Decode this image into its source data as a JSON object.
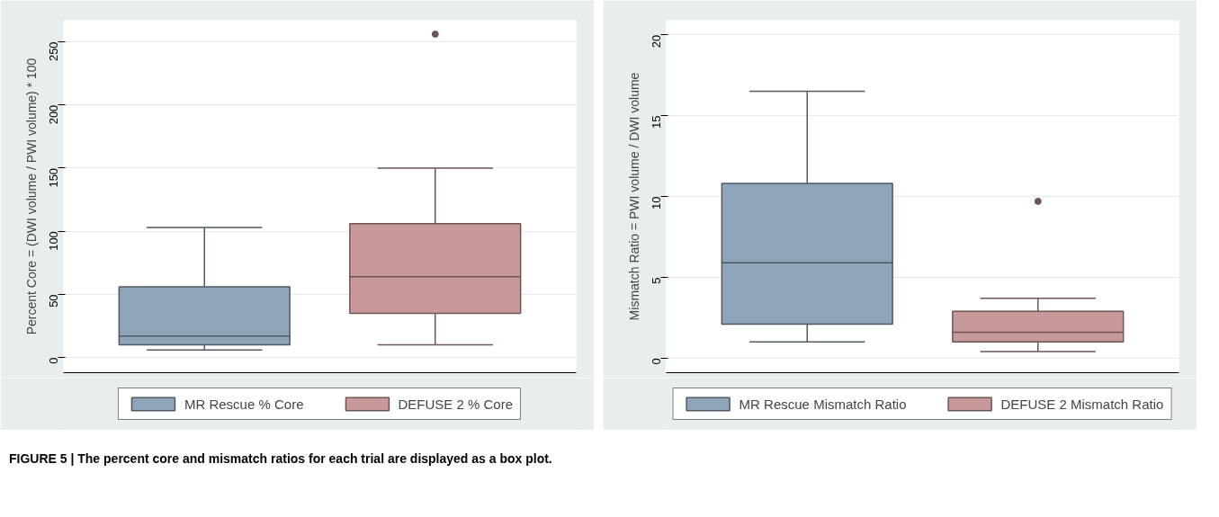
{
  "chart_data": [
    {
      "type": "box",
      "ylabel": "Percent Core = (DWI volume / PWI volume) * 100",
      "categories": [
        null
      ],
      "ylim": [
        -12,
        267
      ],
      "yticks": [
        0,
        50,
        100,
        150,
        200,
        250
      ],
      "grid": "y",
      "legend": "bottom",
      "tick_labels": "y",
      "annotations": [
        "FIGURE 5 | The percent core and mismatch ratios for each trial are displayed as a box plot."
      ],
      "series": [
        {
          "name": "MR Rescue % Core",
          "color": "#8ea5b9",
          "boxes": [
            {
              "low": 6,
              "q1": 10,
              "median": 17,
              "q3": 56,
              "high": 103
            }
          ]
        },
        {
          "name": "DEFUSE 2 % Core",
          "color": "#c8999b",
          "boxes": [
            {
              "low": 10,
              "q1": 35,
              "median": 64,
              "q3": 106,
              "high": 150,
              "outliers": [
                256
              ]
            }
          ]
        }
      ]
    },
    {
      "type": "box",
      "ylabel": "Mismatch Ratio = PWI volume / DWI volume",
      "categories": [
        null
      ],
      "ylim": [
        -0.9,
        20.9
      ],
      "yticks": [
        0,
        5,
        10,
        15,
        20
      ],
      "grid": "y",
      "legend": "bottom",
      "tick_labels": "y",
      "series": [
        {
          "name": "MR Rescue Mismatch Ratio",
          "color": "#8ea5b9",
          "boxes": [
            {
              "low": 1.0,
              "q1": 2.1,
              "median": 5.9,
              "q3": 10.8,
              "high": 16.5
            }
          ]
        },
        {
          "name": "DEFUSE 2 Mismatch Ratio",
          "color": "#c8999b",
          "boxes": [
            {
              "low": 0.4,
              "q1": 1.0,
              "median": 1.6,
              "q3": 2.9,
              "high": 3.7,
              "outliers": [
                9.7
              ]
            }
          ]
        }
      ]
    }
  ]
}
